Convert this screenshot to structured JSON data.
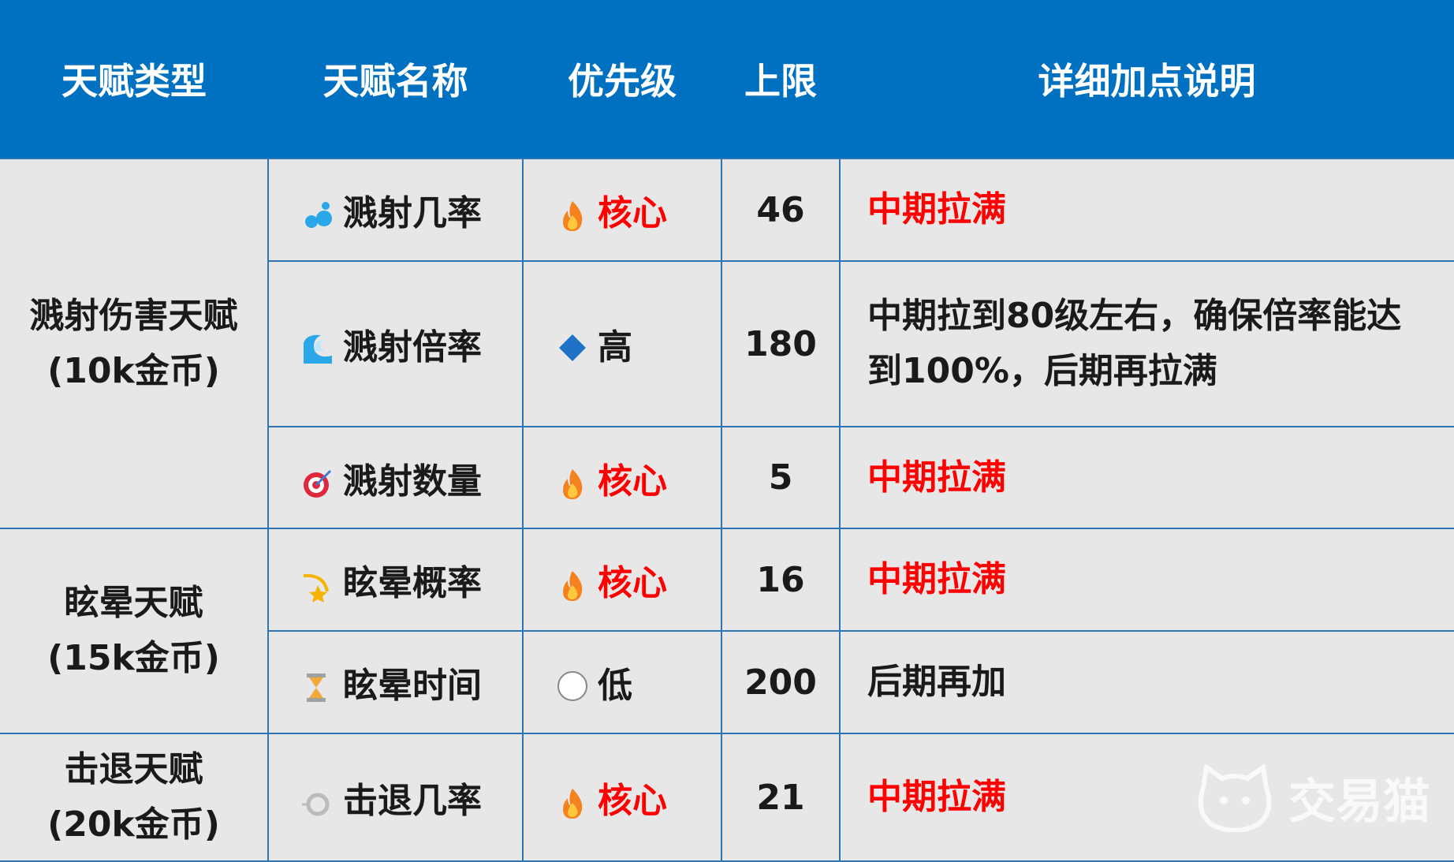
{
  "table": {
    "headers": [
      "天赋类型",
      "天赋名称",
      "优先级",
      "上限",
      "详细加点说明"
    ],
    "groups": [
      {
        "type": [
          "溅射伤害天赋",
          "(10k金币)"
        ],
        "rows": [
          {
            "name": "溅射几率",
            "priority": "核心",
            "priority_color": "#ff0000",
            "limit": "46",
            "detail": "中期拉满",
            "detail_color": "#ff0000"
          },
          {
            "name": "溅射倍率",
            "priority": "高",
            "priority_color": "#1a1a1a",
            "limit": "180",
            "detail": "中期拉到80级左右，确保倍率能达到100%，后期再拉满",
            "detail_color": "#1a1a1a"
          },
          {
            "name": "溅射数量",
            "priority": "核心",
            "priority_color": "#ff0000",
            "limit": "5",
            "detail": "中期拉满",
            "detail_color": "#ff0000"
          }
        ]
      },
      {
        "type": [
          "眩晕天赋",
          "(15k金币)"
        ],
        "rows": [
          {
            "name": "眩晕概率",
            "priority": "核心",
            "priority_color": "#ff0000",
            "limit": "16",
            "detail": "中期拉满",
            "detail_color": "#ff0000"
          },
          {
            "name": "眩晕时间",
            "priority": "低",
            "priority_color": "#1a1a1a",
            "limit": "200",
            "detail": "后期再加",
            "detail_color": "#1a1a1a"
          }
        ]
      },
      {
        "type": [
          "击退天赋",
          "(20k金币)"
        ],
        "rows": [
          {
            "name": "击退几率",
            "priority": "核心",
            "priority_color": "#ff0000",
            "limit": "21",
            "detail": "中期拉满",
            "detail_color": "#ff0000"
          }
        ]
      }
    ]
  },
  "watermark": "交易猫"
}
